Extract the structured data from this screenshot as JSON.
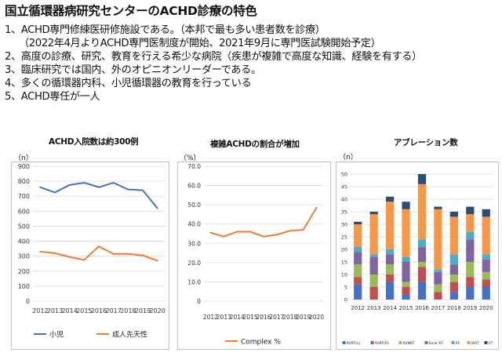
{
  "title": "国立循環器病研究センターのACHD診療の特色",
  "points": [
    "1、ACHD専門修練医研修施設である。（本邦で最も多い患者数を診療）",
    "（2022年4月よりACHD専門医制度が開始、2021年9月に専門医試験開始予定）",
    "2、高度の診療、研究、教育を行える希少な病院（疾患が複雑で高度な知識、経験を有する）",
    "3、臨床研究では国内、外のオピニオンリーダーである。",
    "4、多くの循環器内科、小児循環器の教育を行っている",
    "5、ACHD専任が一人"
  ],
  "colors": {
    "blue": "#4472C4",
    "orange": "#ED7D31",
    "grid": "#D9D9D9",
    "axis": "#BFBFBF"
  },
  "chart_data": [
    {
      "type": "line",
      "title": "ACHD入院数は約300例",
      "unit": "（n）",
      "categories": [
        "2012",
        "2013",
        "2014",
        "2015",
        "2016",
        "2017",
        "2018",
        "2019",
        "2020"
      ],
      "ylim": [
        0,
        900
      ],
      "yticks": [
        "0",
        "100",
        "200",
        "300",
        "400",
        "500",
        "600",
        "700",
        "800",
        "900"
      ],
      "series": [
        {
          "name": "小児",
          "color": "#4472C4",
          "values": [
            760,
            725,
            775,
            790,
            760,
            790,
            745,
            740,
            620
          ]
        },
        {
          "name": "成人先天性",
          "color": "#ED7D31",
          "values": [
            330,
            320,
            295,
            275,
            365,
            315,
            315,
            305,
            270
          ]
        }
      ]
    },
    {
      "type": "line",
      "title": "複雑ACHDの割合が増加",
      "unit": "（%）",
      "categories": [
        "2012",
        "2013",
        "2014",
        "2015",
        "2016",
        "2017",
        "2018",
        "2019",
        "2020"
      ],
      "ylim": [
        0,
        70
      ],
      "yticks": [
        "0",
        "10.0",
        "20.0",
        "30.0",
        "40.0",
        "50.0",
        "60.0",
        "70.0"
      ],
      "series": [
        {
          "name": "Complex %",
          "color": "#ED7D31",
          "values": [
            35.5,
            33.5,
            36.0,
            36.0,
            33.5,
            34.5,
            36.5,
            37.0,
            48.5
          ]
        }
      ]
    },
    {
      "type": "bar",
      "stacked": true,
      "title": "アブレーション数",
      "unit": "（n）",
      "categories": [
        "2012",
        "2013",
        "2014",
        "2015",
        "2016",
        "2017",
        "2018",
        "2019",
        "2020"
      ],
      "ylim": [
        0,
        50
      ],
      "yticks": [
        "0",
        "5",
        "10",
        "15",
        "20",
        "25",
        "30",
        "35",
        "40",
        "45",
        "50"
      ],
      "series": [
        {
          "name": "AVRT(L)",
          "color": "#4472C4",
          "values": [
            6,
            0,
            7,
            2,
            7,
            0,
            3,
            5,
            5
          ]
        },
        {
          "name": "AVRT(R)",
          "color": "#C0504D",
          "values": [
            3,
            5,
            3,
            3,
            6,
            3,
            4,
            4,
            3
          ]
        },
        {
          "name": "AVNRT",
          "color": "#9BBB59",
          "values": [
            5,
            5,
            4,
            2,
            2,
            3,
            3,
            6,
            3
          ]
        },
        {
          "name": "focal AT",
          "color": "#8064A2",
          "values": [
            5,
            7,
            4,
            8,
            6,
            5,
            4,
            9,
            5
          ]
        },
        {
          "name": "AF",
          "color": "#4BACC6",
          "values": [
            2,
            1,
            2,
            2,
            3,
            1,
            4,
            3,
            2
          ]
        },
        {
          "name": "IART",
          "color": "#F79646",
          "values": [
            9,
            16,
            19,
            19,
            22,
            24,
            15,
            7,
            15
          ]
        },
        {
          "name": "VT",
          "color": "#2C4D75",
          "values": [
            1,
            1,
            2,
            3,
            4,
            1,
            2,
            3,
            3
          ]
        }
      ]
    }
  ]
}
